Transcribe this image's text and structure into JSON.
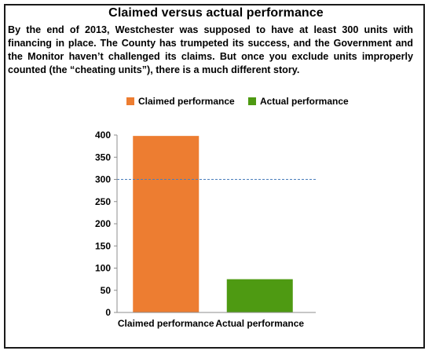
{
  "header": {
    "title": "Claimed versus actual performance",
    "description": "By the end of 2013, Westchester was supposed to have at least 300 units with financing in place.  The County has trumpeted its success, and the Government and the Monitor haven’t challenged its claims.  But once you exclude units improperly counted (the “cheating units”), there is a much different story."
  },
  "chart_data": {
    "type": "bar",
    "title": "Claimed versus actual performance",
    "categories": [
      "Claimed performance",
      "Actual performance"
    ],
    "values": [
      398,
      75
    ],
    "colors": [
      "#ed7d31",
      "#4e9a12"
    ],
    "legend": [
      {
        "label": "Claimed performance",
        "color": "#ed7d31"
      },
      {
        "label": "Actual performance",
        "color": "#4e9a12"
      }
    ],
    "legend_position": "top",
    "ylim": [
      0,
      400
    ],
    "yticks": [
      0,
      50,
      100,
      150,
      200,
      250,
      300,
      350,
      400
    ],
    "reference_line": {
      "value": 300,
      "style": "dashed",
      "color": "#4a7ebb"
    },
    "grid": false,
    "xlabel": "",
    "ylabel": ""
  }
}
